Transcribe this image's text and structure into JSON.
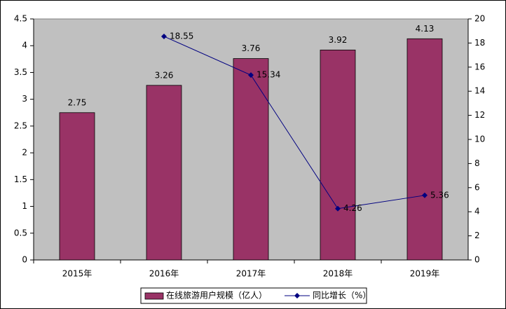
{
  "chart_data": {
    "type": "bar",
    "categories": [
      "2015年",
      "2016年",
      "2017年",
      "2018年",
      "2019年"
    ],
    "series": [
      {
        "name": "在线旅游用户规模（亿人）",
        "type": "bar",
        "color": "#993366",
        "values": [
          2.75,
          3.26,
          3.76,
          3.92,
          4.13
        ]
      },
      {
        "name": "同比增长（%）",
        "type": "line",
        "axis": "y2",
        "color": "#000080",
        "values": [
          null,
          18.55,
          15.34,
          4.26,
          5.36
        ]
      }
    ],
    "ylim": [
      0,
      4.5
    ],
    "yticks": [
      0,
      0.5,
      1,
      1.5,
      2,
      2.5,
      3,
      3.5,
      4,
      4.5
    ],
    "y2lim": [
      0,
      20
    ],
    "y2ticks": [
      0,
      2,
      4,
      6,
      8,
      10,
      12,
      14,
      16,
      18,
      20
    ],
    "legend": "bottom",
    "background": "#c0c0c0"
  }
}
